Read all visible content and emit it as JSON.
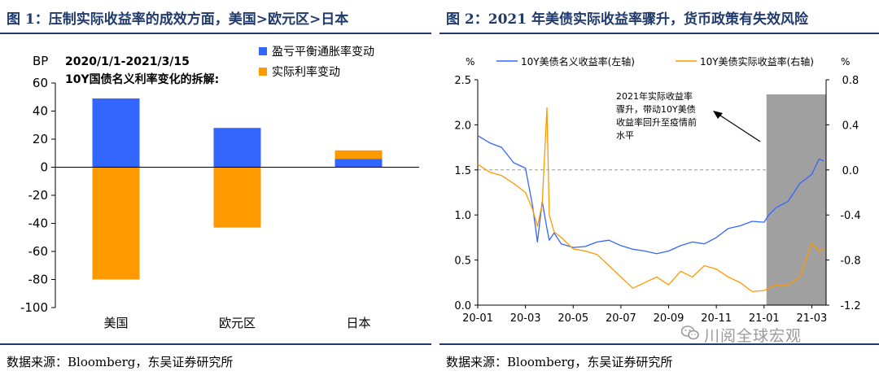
{
  "left": {
    "title": "图 1：压制实际收益率的成效方面，美国>欧元区>日本",
    "source": "数据来源：Bloomberg，东吴证券研究所"
  },
  "right": {
    "title": "图 2：2021 年美债实际收益率骤升，货币政策有失效风险",
    "source": "数据来源：Bloomberg，东吴证券研究所"
  },
  "watermark": {
    "text": "川阅全球宏观"
  },
  "colors": {
    "blue": "#3366ff",
    "orange": "#ff9900",
    "navy": "#1f3a6b",
    "shade": "#a0a0a0"
  },
  "chart_data": [
    {
      "type": "bar",
      "stacked": true,
      "title": "2020/1/1-2021/3/15",
      "subtitle": "10Y国债名义利率变化的拆解:",
      "ylabel": "BP",
      "ylim": [
        -100,
        60
      ],
      "yticks": [
        60,
        40,
        20,
        0,
        -20,
        -40,
        -60,
        -80,
        -100
      ],
      "categories": [
        "美国",
        "欧元区",
        "日本"
      ],
      "series": [
        {
          "name": "盈亏平衡通胀率变动",
          "color": "#3366ff",
          "values": [
            49,
            28,
            6
          ]
        },
        {
          "name": "实际利率变动",
          "color": "#ff9900",
          "values": [
            -80,
            -43,
            6
          ]
        }
      ],
      "legend_position": "top-right"
    },
    {
      "type": "line",
      "x_ticks": [
        "20-01",
        "20-03",
        "20-05",
        "20-07",
        "20-09",
        "20-11",
        "21-01",
        "21-03"
      ],
      "left_unit": "%",
      "right_unit": "%",
      "left_ylim": [
        0.0,
        2.5
      ],
      "left_yticks": [
        "0.0",
        "0.5",
        "1.0",
        "1.5",
        "2.0",
        "2.5"
      ],
      "right_ylim": [
        -1.2,
        0.8
      ],
      "right_yticks": [
        "-1.2",
        "-0.8",
        "-0.4",
        "0.0",
        "0.4",
        "0.8"
      ],
      "reference_line": {
        "axis": "right",
        "value": 0.0,
        "style": "dashed"
      },
      "shaded_period": {
        "start_month": 12.1,
        "end_month": 14.6
      },
      "annotation": "2021年实际收益率骤升，带动10Y美债收益率回升至疫情前水平",
      "annotation_lines": [
        "2021年实际收益率",
        "骤升，带动10Y美债",
        "收益率回升至疫情前",
        "水平"
      ],
      "series": [
        {
          "name": "10Y美债名义收益率(左轴)",
          "color": "#3366ff",
          "axis": "left",
          "x": [
            0,
            0.5,
            1,
            1.5,
            2,
            2.3,
            2.5,
            2.7,
            2.9,
            3,
            3.2,
            3.5,
            4,
            4.5,
            5,
            5.5,
            6,
            6.5,
            7,
            7.5,
            8,
            8.5,
            9,
            9.5,
            10,
            10.5,
            11,
            11.5,
            12,
            12.2,
            12.5,
            13,
            13.5,
            14,
            14.3,
            14.5
          ],
          "values": [
            1.88,
            1.8,
            1.75,
            1.58,
            1.52,
            1.1,
            0.7,
            1.15,
            0.85,
            0.72,
            0.8,
            0.68,
            0.64,
            0.65,
            0.7,
            0.72,
            0.66,
            0.62,
            0.6,
            0.57,
            0.6,
            0.66,
            0.7,
            0.68,
            0.75,
            0.85,
            0.88,
            0.93,
            0.92,
            1.0,
            1.08,
            1.15,
            1.35,
            1.45,
            1.62,
            1.6
          ]
        },
        {
          "name": "10Y美债实际收益率(右轴)",
          "color": "#ff9900",
          "axis": "right",
          "x": [
            0,
            0.5,
            1,
            1.5,
            2,
            2.3,
            2.5,
            2.7,
            2.9,
            3,
            3.2,
            3.5,
            4,
            4.5,
            5,
            5.5,
            6,
            6.5,
            7,
            7.5,
            8,
            8.5,
            9,
            9.5,
            10,
            10.5,
            11,
            11.5,
            12,
            12.2,
            12.5,
            13,
            13.5,
            14,
            14.3,
            14.5
          ],
          "values": [
            0.05,
            -0.02,
            -0.05,
            -0.12,
            -0.2,
            -0.35,
            -0.5,
            -0.3,
            0.55,
            -0.4,
            -0.55,
            -0.6,
            -0.7,
            -0.72,
            -0.75,
            -0.85,
            -0.95,
            -1.05,
            -1.0,
            -0.95,
            -1.02,
            -0.9,
            -0.95,
            -0.85,
            -0.88,
            -0.95,
            -1.0,
            -1.08,
            -1.07,
            -1.05,
            -1.02,
            -1.02,
            -0.95,
            -0.65,
            -0.72,
            -0.7
          ]
        }
      ],
      "legend_position": "top"
    }
  ]
}
